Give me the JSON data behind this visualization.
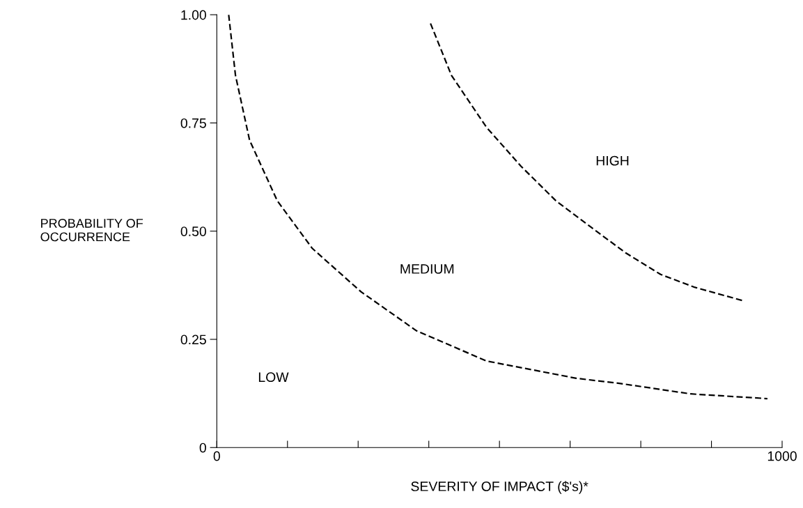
{
  "chart_data": {
    "type": "line",
    "xlabel": "SEVERITY OF IMPACT ($'s)*",
    "ylabel": "PROBABILITY OF\nOCCURRENCE",
    "series": [
      {
        "color": "#000000",
        "x": [
          21,
          33,
          58,
          107,
          169,
          255,
          353,
          477,
          636,
          714,
          838,
          974
        ],
        "values": [
          1.0,
          0.86,
          0.71,
          0.57,
          0.46,
          0.36,
          0.27,
          0.2,
          0.16,
          0.148,
          0.124,
          0.113
        ]
      },
      {
        "color": "#000000",
        "x": [
          378,
          415,
          477,
          538,
          600,
          661,
          723,
          785,
          846,
          929
        ],
        "values": [
          0.98,
          0.86,
          0.74,
          0.65,
          0.57,
          0.51,
          0.45,
          0.4,
          0.37,
          0.34
        ]
      }
    ],
    "line_style": "dashed",
    "marker": "none",
    "grid": false,
    "legend": false,
    "xlim": [
      0,
      1000
    ],
    "ylim": [
      0,
      1
    ],
    "xticks": [
      0,
      {
        "value": 125,
        "label": null
      },
      {
        "value": 250,
        "label": null
      },
      {
        "value": 375,
        "label": null
      },
      {
        "value": 500,
        "label": null
      },
      {
        "value": 625,
        "label": null
      },
      {
        "value": 750,
        "label": null
      },
      {
        "value": 875,
        "label": null
      },
      1000
    ],
    "yticks": [
      0,
      {
        "value": 0.25,
        "label": "0.25"
      },
      {
        "value": 0.5,
        "label": "0.50"
      },
      {
        "value": 0.75,
        "label": "0.75"
      },
      {
        "value": 1,
        "label": "1.00"
      }
    ],
    "annotations": [
      "HIGH",
      "MEDIUM",
      "LOW"
    ]
  }
}
